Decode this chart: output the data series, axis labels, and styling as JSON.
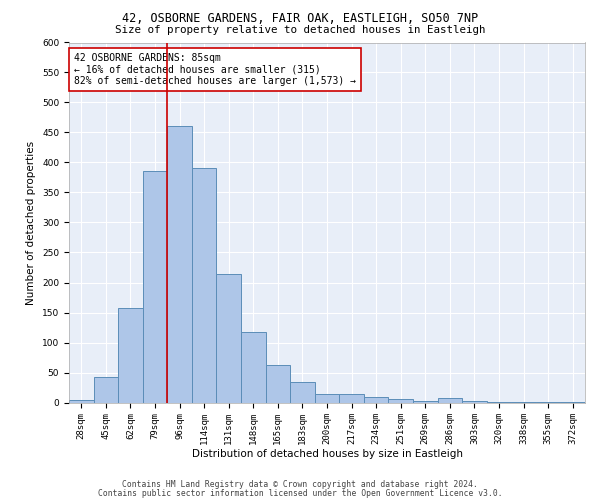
{
  "title_line1": "42, OSBORNE GARDENS, FAIR OAK, EASTLEIGH, SO50 7NP",
  "title_line2": "Size of property relative to detached houses in Eastleigh",
  "xlabel": "Distribution of detached houses by size in Eastleigh",
  "ylabel": "Number of detached properties",
  "categories": [
    "28sqm",
    "45sqm",
    "62sqm",
    "79sqm",
    "96sqm",
    "114sqm",
    "131sqm",
    "148sqm",
    "165sqm",
    "183sqm",
    "200sqm",
    "217sqm",
    "234sqm",
    "251sqm",
    "269sqm",
    "286sqm",
    "303sqm",
    "320sqm",
    "338sqm",
    "355sqm",
    "372sqm"
  ],
  "values": [
    5,
    42,
    158,
    385,
    460,
    390,
    215,
    118,
    62,
    35,
    14,
    15,
    10,
    6,
    3,
    7,
    2,
    1,
    1,
    1,
    1
  ],
  "bar_color": "#aec6e8",
  "bar_edge_color": "#5b8db8",
  "vline_x": 3.5,
  "vline_color": "#cc0000",
  "annotation_text": "42 OSBORNE GARDENS: 85sqm\n← 16% of detached houses are smaller (315)\n82% of semi-detached houses are larger (1,573) →",
  "annotation_box_color": "#ffffff",
  "annotation_box_edge_color": "#cc0000",
  "ylim": [
    0,
    600
  ],
  "yticks": [
    0,
    50,
    100,
    150,
    200,
    250,
    300,
    350,
    400,
    450,
    500,
    550,
    600
  ],
  "bg_color": "#e8eef8",
  "footer_line1": "Contains HM Land Registry data © Crown copyright and database right 2024.",
  "footer_line2": "Contains public sector information licensed under the Open Government Licence v3.0.",
  "title_fontsize": 8.5,
  "subtitle_fontsize": 7.8,
  "axis_label_fontsize": 7.5,
  "tick_fontsize": 6.5,
  "annotation_fontsize": 7.0,
  "footer_fontsize": 5.8
}
